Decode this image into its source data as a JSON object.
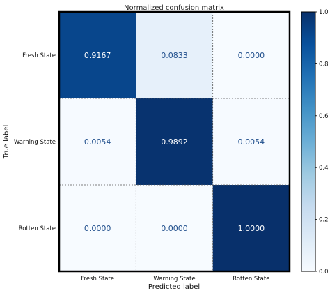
{
  "chart_data": {
    "type": "heatmap",
    "title": "Normalized confusion matrix",
    "xlabel": "Predicted label",
    "ylabel": "True label",
    "x_categories": [
      "Fresh State",
      "Warning State",
      "Rotten State"
    ],
    "y_categories": [
      "Fresh State",
      "Warning State",
      "Rotten State"
    ],
    "values": [
      [
        0.9167,
        0.0833,
        0.0
      ],
      [
        0.0054,
        0.9892,
        0.0054
      ],
      [
        0.0,
        0.0,
        1.0
      ]
    ],
    "value_labels": [
      [
        "0.9167",
        "0.0833",
        "0.0000"
      ],
      [
        "0.0054",
        "0.9892",
        "0.0054"
      ],
      [
        "0.0000",
        "0.0000",
        "1.0000"
      ]
    ],
    "colormap": "Blues",
    "colorbar": {
      "range": [
        0.0,
        1.0
      ],
      "ticks": [
        0.0,
        0.2,
        0.4,
        0.6,
        0.8,
        1.0
      ],
      "tick_labels": [
        "0.0",
        "0.2",
        "0.4",
        "0.6",
        "0.8",
        "1.0"
      ]
    },
    "grid": true,
    "colors": {
      "low": "#f7fbff",
      "high": "#08306b",
      "text_dark": "#1f4e8c",
      "text_light": "#ffffff"
    }
  }
}
